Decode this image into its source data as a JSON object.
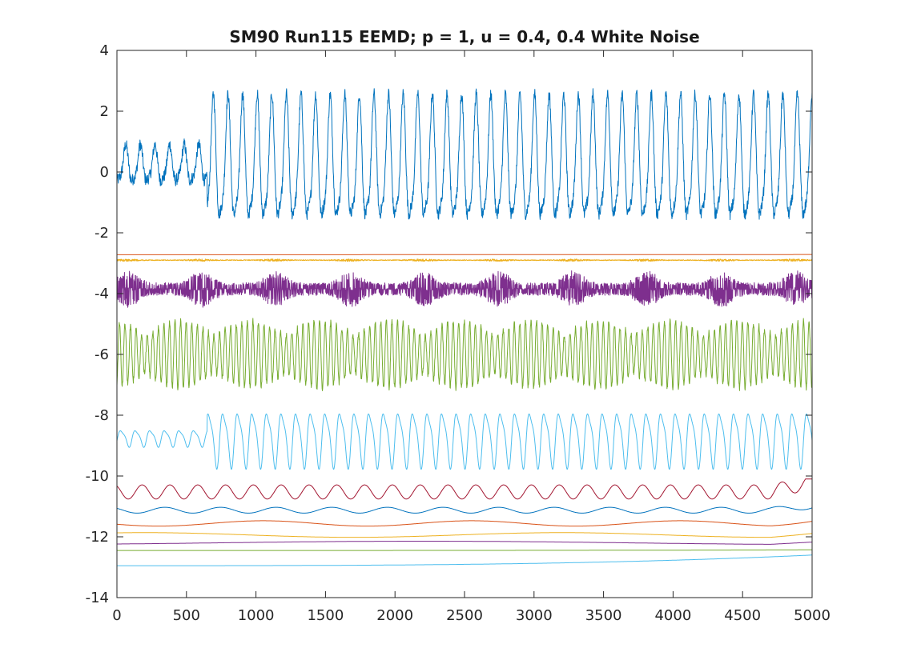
{
  "chart_data": {
    "type": "line",
    "title": "SM90 Run115 EEMD; p = 1, u = 0.4, 0.4 White Noise",
    "xlabel": "",
    "ylabel": "",
    "xlim": [
      0,
      5000
    ],
    "ylim": [
      -14,
      4
    ],
    "xticks": [
      0,
      500,
      1000,
      1500,
      2000,
      2500,
      3000,
      3500,
      4000,
      4500,
      5000
    ],
    "yticks": [
      4,
      2,
      0,
      -2,
      -4,
      -6,
      -8,
      -10,
      -12,
      -14
    ],
    "grid": false,
    "series": [
      {
        "color": "#0072BD",
        "offset": 0,
        "amplitude_range": [
          -2.6,
          3.0
        ],
        "dominant_period": 105,
        "description": "IMF-like component 1"
      },
      {
        "color": "#D95319",
        "offset": -2.72,
        "amplitude_range": [
          -2.74,
          -2.7
        ],
        "dominant_period": 0
      },
      {
        "color": "#EDB120",
        "offset": -2.9,
        "amplitude_range": [
          -2.95,
          -2.85
        ],
        "dominant_period": 3
      },
      {
        "color": "#7E2F8E",
        "offset": -3.95,
        "amplitude_range": [
          -4.6,
          -3.1
        ],
        "dominant_period": 12
      },
      {
        "color": "#77AC30",
        "offset": -6.2,
        "amplitude_range": [
          -7.3,
          -4.7
        ],
        "dominant_period": 40
      },
      {
        "color": "#4DBEEE",
        "offset": -8.6,
        "amplitude_range": [
          -10.0,
          -7.5
        ],
        "dominant_period": 105
      },
      {
        "color": "#A2142F",
        "offset": -10.65,
        "amplitude_range": [
          -10.95,
          -10.1
        ],
        "dominant_period": 200
      },
      {
        "color": "#0072BD",
        "offset": -11.2,
        "amplitude_range": [
          -11.3,
          -10.95
        ],
        "dominant_period": 400
      },
      {
        "color": "#D95319",
        "offset": -11.6,
        "amplitude_range": [
          -11.72,
          -11.4
        ],
        "dominant_period": 1500
      },
      {
        "color": "#EDB120",
        "offset": -11.95,
        "amplitude_range": [
          -12.08,
          -11.8
        ],
        "dominant_period": 3000
      },
      {
        "color": "#7E2F8E",
        "offset": -12.2,
        "amplitude_range": [
          -12.3,
          -12.1
        ],
        "dominant_period": 6000
      },
      {
        "color": "#77AC30",
        "offset": -12.45,
        "amplitude_range": [
          -12.5,
          -12.38
        ],
        "dominant_period": 0
      },
      {
        "color": "#4DBEEE",
        "offset": -12.95,
        "amplitude_range": [
          -13.0,
          -12.6
        ],
        "dominant_period": 0
      }
    ]
  }
}
